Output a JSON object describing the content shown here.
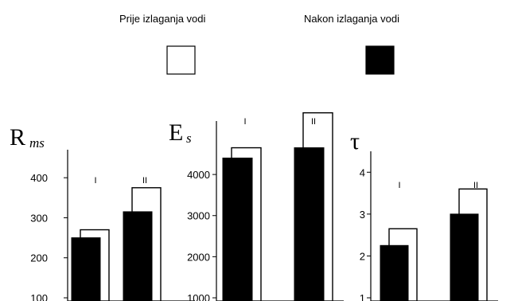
{
  "legend": {
    "before_label": "Prije izlaganja vodi",
    "after_label": "Nakon izlaganja vodi",
    "before_color": "#ffffff",
    "after_color": "#000000"
  },
  "chart_data": [
    {
      "type": "bar",
      "title_main": "R",
      "title_sub": "ms",
      "categories": [
        "I",
        "II"
      ],
      "ylim": [
        100,
        470
      ],
      "yticks": [
        "100",
        "200",
        "300",
        "400"
      ],
      "series": [
        {
          "name": "Prije izlaganja vodi",
          "values": [
            270,
            375
          ]
        },
        {
          "name": "Nakon izlaganja vodi",
          "values": [
            250,
            315
          ]
        }
      ]
    },
    {
      "type": "bar",
      "title_main": "E",
      "title_sub": "s",
      "categories": [
        "I",
        "II"
      ],
      "ylim": [
        1000,
        5300
      ],
      "yticks": [
        "1000",
        "2000",
        "3000",
        "4000"
      ],
      "series": [
        {
          "name": "Prije izlaganja vodi",
          "values": [
            4650,
            5500
          ]
        },
        {
          "name": "Nakon izlaganja vodi",
          "values": [
            4400,
            4650
          ]
        }
      ]
    },
    {
      "type": "bar",
      "title_main": "τ",
      "title_sub": "",
      "categories": [
        "I",
        "II"
      ],
      "ylim": [
        1,
        4.5
      ],
      "yticks": [
        "1",
        "2",
        "3",
        "4"
      ],
      "series": [
        {
          "name": "Prije izlaganja vodi",
          "values": [
            2.65,
            3.6
          ]
        },
        {
          "name": "Nakon izlaganja vodi",
          "values": [
            2.25,
            3.0
          ]
        }
      ]
    }
  ]
}
